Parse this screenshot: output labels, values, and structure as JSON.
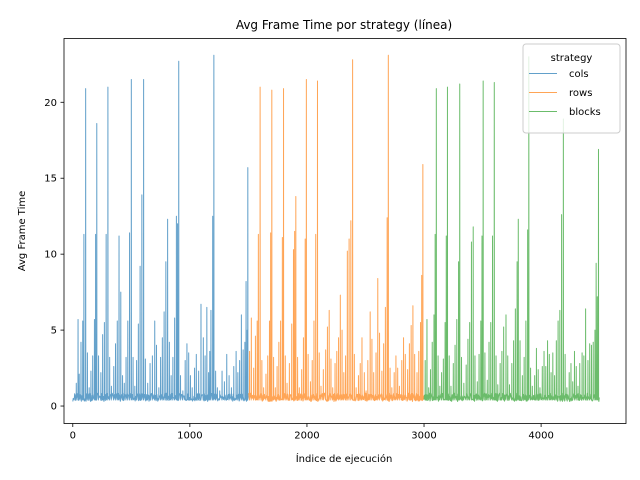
{
  "chart_data": {
    "type": "line",
    "title": "Avg Frame Time por strategy (línea)",
    "xlabel": "Índice de ejecución",
    "ylabel": "Avg Frame Time",
    "xlim": [
      -75,
      4725
    ],
    "ylim": [
      -1.15,
      24.2
    ],
    "xticks": [
      0,
      1000,
      2000,
      3000,
      4000
    ],
    "yticks": [
      0,
      5,
      10,
      15,
      20
    ],
    "grid": false,
    "legend": {
      "title": "strategy",
      "placement": "upper right"
    },
    "series": [
      {
        "name": "cols",
        "color": "#1f77b4",
        "x_range": [
          0,
          1499
        ],
        "baseline": 0.3,
        "spikes": [
          [
            30,
            1.5
          ],
          [
            45,
            5.7
          ],
          [
            55,
            2.1
          ],
          [
            70,
            4.2
          ],
          [
            85,
            5.6
          ],
          [
            95,
            11.3
          ],
          [
            110,
            20.9
          ],
          [
            125,
            3.5
          ],
          [
            140,
            1.2
          ],
          [
            155,
            2.3
          ],
          [
            170,
            3.3
          ],
          [
            185,
            5.7
          ],
          [
            195,
            11.3
          ],
          [
            205,
            18.6
          ],
          [
            220,
            3.3
          ],
          [
            240,
            2.2
          ],
          [
            255,
            4.7
          ],
          [
            270,
            5.5
          ],
          [
            285,
            11.3
          ],
          [
            300,
            21.0
          ],
          [
            315,
            3.2
          ],
          [
            330,
            1.3
          ],
          [
            350,
            2.6
          ],
          [
            365,
            4.1
          ],
          [
            380,
            5.6
          ],
          [
            395,
            11.2
          ],
          [
            410,
            7.5
          ],
          [
            425,
            2.0
          ],
          [
            440,
            1.5
          ],
          [
            455,
            3.2
          ],
          [
            470,
            5.6
          ],
          [
            485,
            11.4
          ],
          [
            500,
            21.5
          ],
          [
            515,
            3.2
          ],
          [
            530,
            1.3
          ],
          [
            545,
            3.0
          ],
          [
            560,
            5.4
          ],
          [
            575,
            9.2
          ],
          [
            590,
            13.9
          ],
          [
            605,
            21.5
          ],
          [
            620,
            3.1
          ],
          [
            640,
            1.5
          ],
          [
            660,
            2.8
          ],
          [
            680,
            3.3
          ],
          [
            700,
            5.6
          ],
          [
            715,
            4.0
          ],
          [
            735,
            1.2
          ],
          [
            750,
            3.2
          ],
          [
            765,
            4.5
          ],
          [
            780,
            6.2
          ],
          [
            795,
            9.5
          ],
          [
            810,
            12.3
          ],
          [
            825,
            4.2
          ],
          [
            840,
            2.0
          ],
          [
            855,
            3.2
          ],
          [
            870,
            5.8
          ],
          [
            885,
            12.5
          ],
          [
            895,
            12.0
          ],
          [
            905,
            22.7
          ],
          [
            920,
            2.0
          ],
          [
            940,
            1.0
          ],
          [
            960,
            3.0
          ],
          [
            975,
            4.1
          ],
          [
            990,
            3.5
          ],
          [
            1005,
            2.0
          ],
          [
            1020,
            1.2
          ],
          [
            1040,
            2.5
          ],
          [
            1055,
            3.4
          ],
          [
            1075,
            2.3
          ],
          [
            1095,
            6.7
          ],
          [
            1115,
            4.5
          ],
          [
            1130,
            3.3
          ],
          [
            1145,
            6.5
          ],
          [
            1160,
            2.2
          ],
          [
            1170,
            3.6
          ],
          [
            1180,
            6.3
          ],
          [
            1195,
            12.5
          ],
          [
            1205,
            23.1
          ],
          [
            1220,
            2.3
          ],
          [
            1235,
            1.2
          ],
          [
            1255,
            1.0
          ],
          [
            1275,
            2.3
          ],
          [
            1295,
            1.6
          ],
          [
            1315,
            3.4
          ],
          [
            1335,
            2.0
          ],
          [
            1355,
            1.2
          ],
          [
            1375,
            2.6
          ],
          [
            1395,
            3.6
          ],
          [
            1410,
            2.2
          ],
          [
            1425,
            3.0
          ],
          [
            1440,
            6.0
          ],
          [
            1455,
            3.7
          ],
          [
            1470,
            4.2
          ],
          [
            1480,
            8.2
          ],
          [
            1490,
            5.0
          ],
          [
            1495,
            15.7
          ]
        ]
      },
      {
        "name": "rows",
        "color": "#ff7f0e",
        "x_range": [
          1500,
          2999
        ],
        "baseline": 0.3,
        "spikes": [
          [
            1510,
            3.6
          ],
          [
            1525,
            5.8
          ],
          [
            1545,
            2.5
          ],
          [
            1560,
            4.6
          ],
          [
            1575,
            5.6
          ],
          [
            1585,
            11.3
          ],
          [
            1600,
            21.0
          ],
          [
            1615,
            3.0
          ],
          [
            1630,
            1.2
          ],
          [
            1650,
            2.1
          ],
          [
            1665,
            3.3
          ],
          [
            1680,
            5.6
          ],
          [
            1690,
            11.4
          ],
          [
            1700,
            20.8
          ],
          [
            1715,
            3.2
          ],
          [
            1730,
            1.2
          ],
          [
            1745,
            2.6
          ],
          [
            1760,
            4.2
          ],
          [
            1775,
            5.6
          ],
          [
            1790,
            11.1
          ],
          [
            1800,
            20.9
          ],
          [
            1815,
            3.3
          ],
          [
            1830,
            1.5
          ],
          [
            1850,
            2.8
          ],
          [
            1870,
            5.4
          ],
          [
            1885,
            10.3
          ],
          [
            1895,
            11.5
          ],
          [
            1905,
            13.8
          ],
          [
            1920,
            3.2
          ],
          [
            1935,
            1.2
          ],
          [
            1955,
            2.4
          ],
          [
            1970,
            4.5
          ],
          [
            1985,
            11.0
          ],
          [
            1995,
            21.5
          ],
          [
            2010,
            3.4
          ],
          [
            2030,
            1.6
          ],
          [
            2045,
            3.0
          ],
          [
            2060,
            5.6
          ],
          [
            2075,
            11.3
          ],
          [
            2090,
            21.4
          ],
          [
            2105,
            3.5
          ],
          [
            2120,
            1.3
          ],
          [
            2140,
            2.4
          ],
          [
            2160,
            3.7
          ],
          [
            2175,
            5.2
          ],
          [
            2190,
            6.3
          ],
          [
            2205,
            3.1
          ],
          [
            2220,
            1.2
          ],
          [
            2240,
            2.8
          ],
          [
            2255,
            3.6
          ],
          [
            2270,
            4.5
          ],
          [
            2285,
            7.3
          ],
          [
            2300,
            5.0
          ],
          [
            2315,
            2.2
          ],
          [
            2330,
            3.3
          ],
          [
            2345,
            10.2
          ],
          [
            2360,
            11.0
          ],
          [
            2375,
            12.2
          ],
          [
            2390,
            22.8
          ],
          [
            2405,
            3.4
          ],
          [
            2420,
            1.2
          ],
          [
            2440,
            2.0
          ],
          [
            2455,
            2.8
          ],
          [
            2470,
            4.5
          ],
          [
            2490,
            2.2
          ],
          [
            2505,
            1.0
          ],
          [
            2520,
            3.0
          ],
          [
            2540,
            6.2
          ],
          [
            2555,
            4.4
          ],
          [
            2570,
            2.2
          ],
          [
            2590,
            3.5
          ],
          [
            2605,
            8.4
          ],
          [
            2620,
            4.8
          ],
          [
            2640,
            2.3
          ],
          [
            2655,
            4.1
          ],
          [
            2670,
            6.5
          ],
          [
            2685,
            12.4
          ],
          [
            2695,
            23.1
          ],
          [
            2710,
            2.5
          ],
          [
            2725,
            1.2
          ],
          [
            2745,
            2.2
          ],
          [
            2760,
            3.3
          ],
          [
            2775,
            2.5
          ],
          [
            2790,
            1.3
          ],
          [
            2810,
            3.0
          ],
          [
            2825,
            4.5
          ],
          [
            2840,
            3.4
          ],
          [
            2860,
            2.4
          ],
          [
            2875,
            4.1
          ],
          [
            2890,
            5.3
          ],
          [
            2905,
            6.6
          ],
          [
            2920,
            3.4
          ],
          [
            2940,
            2.2
          ],
          [
            2955,
            3.6
          ],
          [
            2970,
            5.5
          ],
          [
            2980,
            8.6
          ],
          [
            2990,
            15.9
          ]
        ]
      },
      {
        "name": "blocks",
        "color": "#2ca02c",
        "x_range": [
          3000,
          4499
        ],
        "baseline": 0.3,
        "spikes": [
          [
            3010,
            3.0
          ],
          [
            3025,
            5.7
          ],
          [
            3040,
            1.2
          ],
          [
            3055,
            2.4
          ],
          [
            3070,
            4.2
          ],
          [
            3085,
            6.0
          ],
          [
            3095,
            11.3
          ],
          [
            3105,
            20.9
          ],
          [
            3120,
            3.3
          ],
          [
            3135,
            1.3
          ],
          [
            3150,
            2.2
          ],
          [
            3165,
            3.1
          ],
          [
            3180,
            5.5
          ],
          [
            3190,
            11.2
          ],
          [
            3200,
            21.0
          ],
          [
            3215,
            3.3
          ],
          [
            3230,
            1.3
          ],
          [
            3250,
            2.8
          ],
          [
            3265,
            4.0
          ],
          [
            3280,
            5.7
          ],
          [
            3295,
            9.5
          ],
          [
            3305,
            21.2
          ],
          [
            3320,
            3.2
          ],
          [
            3340,
            1.5
          ],
          [
            3360,
            2.7
          ],
          [
            3375,
            4.4
          ],
          [
            3390,
            5.5
          ],
          [
            3405,
            10.8
          ],
          [
            3420,
            11.8
          ],
          [
            3435,
            3.3
          ],
          [
            3455,
            1.6
          ],
          [
            3470,
            3.4
          ],
          [
            3485,
            5.6
          ],
          [
            3495,
            11.2
          ],
          [
            3505,
            21.4
          ],
          [
            3520,
            3.5
          ],
          [
            3540,
            1.7
          ],
          [
            3555,
            4.2
          ],
          [
            3570,
            5.5
          ],
          [
            3585,
            11.2
          ],
          [
            3600,
            21.3
          ],
          [
            3615,
            3.3
          ],
          [
            3630,
            1.4
          ],
          [
            3650,
            2.8
          ],
          [
            3665,
            3.6
          ],
          [
            3680,
            5.2
          ],
          [
            3700,
            6.0
          ],
          [
            3715,
            3.3
          ],
          [
            3730,
            1.4
          ],
          [
            3750,
            2.8
          ],
          [
            3765,
            4.3
          ],
          [
            3780,
            6.4
          ],
          [
            3795,
            9.5
          ],
          [
            3805,
            12.3
          ],
          [
            3820,
            4.3
          ],
          [
            3840,
            2.0
          ],
          [
            3855,
            3.2
          ],
          [
            3870,
            5.6
          ],
          [
            3885,
            11.6
          ],
          [
            3895,
            23.0
          ],
          [
            3910,
            2.5
          ],
          [
            3925,
            1.3
          ],
          [
            3945,
            2.0
          ],
          [
            3960,
            3.8
          ],
          [
            3975,
            2.4
          ],
          [
            3990,
            1.2
          ],
          [
            4010,
            2.6
          ],
          [
            4025,
            3.6
          ],
          [
            4040,
            2.6
          ],
          [
            4055,
            4.3
          ],
          [
            4070,
            3.4
          ],
          [
            4085,
            2.2
          ],
          [
            4100,
            3.5
          ],
          [
            4115,
            2.0
          ],
          [
            4130,
            4.3
          ],
          [
            4145,
            5.6
          ],
          [
            4160,
            6.3
          ],
          [
            4175,
            12.6
          ],
          [
            4190,
            18.9
          ],
          [
            4205,
            3.4
          ],
          [
            4220,
            1.2
          ],
          [
            4240,
            2.2
          ],
          [
            4255,
            2.8
          ],
          [
            4270,
            1.6
          ],
          [
            4285,
            3.6
          ],
          [
            4300,
            2.6
          ],
          [
            4315,
            1.3
          ],
          [
            4330,
            2.8
          ],
          [
            4350,
            3.5
          ],
          [
            4365,
            3.3
          ],
          [
            4380,
            6.4
          ],
          [
            4400,
            3.0
          ],
          [
            4415,
            4.1
          ],
          [
            4430,
            4.0
          ],
          [
            4445,
            4.2
          ],
          [
            4460,
            5.0
          ],
          [
            4470,
            9.4
          ],
          [
            4480,
            7.2
          ],
          [
            4490,
            16.9
          ]
        ]
      }
    ]
  }
}
